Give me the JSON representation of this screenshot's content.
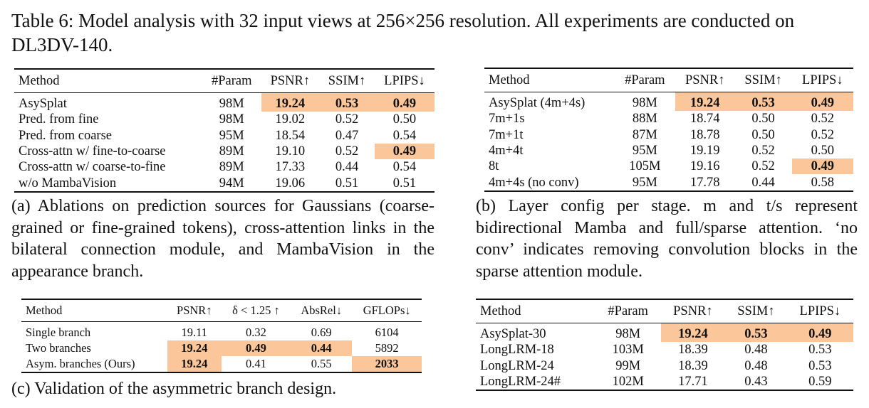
{
  "title": "Table 6: Model analysis with 32 input views at 256×256 resolution. All experiments are conducted on DL3DV-140.",
  "table_a": {
    "headers": [
      "Method",
      "#Param",
      "PSNR↑",
      "SSIM↑",
      "LPIPS↓"
    ],
    "rows": [
      [
        "AsySplat",
        "98M",
        "19.24",
        "0.53",
        "0.49"
      ],
      [
        "Pred. from fine",
        "98M",
        "19.02",
        "0.52",
        "0.50"
      ],
      [
        "Pred. from coarse",
        "95M",
        "18.54",
        "0.47",
        "0.54"
      ],
      [
        "Cross-attn w/ fine-to-coarse",
        "89M",
        "19.10",
        "0.52",
        "0.49"
      ],
      [
        "Cross-attn w/ coarse-to-fine",
        "89M",
        "17.33",
        "0.44",
        "0.54"
      ],
      [
        "w/o MambaVision",
        "94M",
        "19.06",
        "0.51",
        "0.51"
      ]
    ],
    "highlight": [
      [
        0,
        2
      ],
      [
        0,
        3
      ],
      [
        0,
        4
      ],
      [
        3,
        4
      ]
    ],
    "bold": [
      [
        0,
        2
      ],
      [
        0,
        3
      ],
      [
        0,
        4
      ],
      [
        3,
        4
      ]
    ],
    "caption": "(a) Ablations on prediction sources for Gaussians (coarse-grained or fine-grained tokens), cross-attention links in the bilateral connection module, and MambaVision in the appearance branch."
  },
  "table_b": {
    "headers": [
      "Method",
      "#Param",
      "PSNR↑",
      "SSIM↑",
      "LPIPS↓"
    ],
    "rows": [
      [
        "AsySplat (4m+4s)",
        "98M",
        "19.24",
        "0.53",
        "0.49"
      ],
      [
        "7m+1s",
        "88M",
        "18.74",
        "0.50",
        "0.52"
      ],
      [
        "7m+1t",
        "87M",
        "18.78",
        "0.50",
        "0.52"
      ],
      [
        "4m+4t",
        "95M",
        "19.19",
        "0.52",
        "0.50"
      ],
      [
        "8t",
        "105M",
        "19.16",
        "0.52",
        "0.49"
      ],
      [
        "4m+4s (no conv)",
        "95M",
        "17.78",
        "0.44",
        "0.58"
      ]
    ],
    "highlight": [
      [
        0,
        2
      ],
      [
        0,
        3
      ],
      [
        0,
        4
      ],
      [
        4,
        4
      ]
    ],
    "bold": [
      [
        0,
        2
      ],
      [
        0,
        3
      ],
      [
        0,
        4
      ],
      [
        4,
        4
      ]
    ],
    "caption": "(b) Layer config per stage. m and t/s represent bidirectional Mamba and full/sparse attention. ‘no conv’ indicates removing convolution blocks in the sparse attention module."
  },
  "table_c": {
    "headers": [
      "Method",
      "PSNR↑",
      "δ < 1.25 ↑",
      "AbsRel↓",
      "GFLOPs↓"
    ],
    "rows": [
      [
        "Single branch",
        "19.11",
        "0.32",
        "0.69",
        "6104"
      ],
      [
        "Two branches",
        "19.24",
        "0.49",
        "0.44",
        "5892"
      ],
      [
        "Asym. branches (Ours)",
        "19.24",
        "0.41",
        "0.55",
        "2033"
      ]
    ],
    "highlight": [
      [
        1,
        1
      ],
      [
        1,
        2
      ],
      [
        1,
        3
      ],
      [
        2,
        1
      ],
      [
        2,
        4
      ]
    ],
    "bold": [
      [
        1,
        1
      ],
      [
        1,
        2
      ],
      [
        1,
        3
      ],
      [
        2,
        1
      ],
      [
        2,
        4
      ]
    ],
    "caption": "(c) Validation of the asymmetric branch design."
  },
  "table_d": {
    "headers": [
      "Method",
      "#Param",
      "PSNR↑",
      "SSIM↑",
      "LPIPS↓"
    ],
    "rows": [
      [
        "AsySplat-30",
        "98M",
        "19.24",
        "0.53",
        "0.49"
      ],
      [
        "LongLRM-18",
        "103M",
        "18.39",
        "0.48",
        "0.53"
      ],
      [
        "LongLRM-24",
        "99M",
        "18.39",
        "0.48",
        "0.53"
      ],
      [
        "LongLRM-24#",
        "102M",
        "17.71",
        "0.43",
        "0.59"
      ]
    ],
    "highlight": [
      [
        0,
        2
      ],
      [
        0,
        3
      ],
      [
        0,
        4
      ]
    ],
    "bold": [
      [
        0,
        2
      ],
      [
        0,
        3
      ],
      [
        0,
        4
      ]
    ]
  },
  "colors": {
    "highlight": "#fbc79a",
    "text": "#111111"
  }
}
